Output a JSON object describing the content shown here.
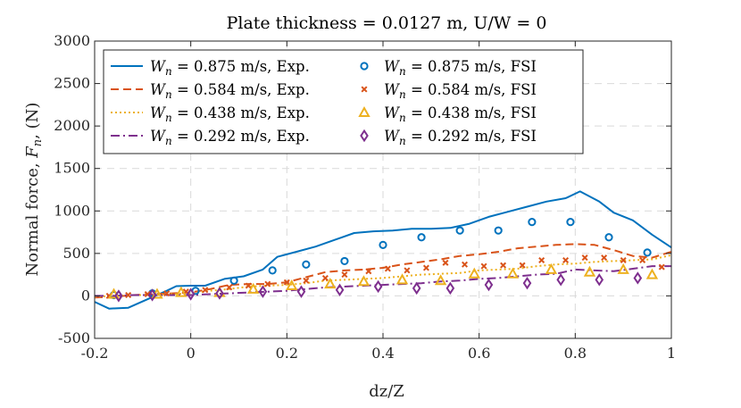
{
  "chart_data": {
    "type": "line",
    "title": "Plate thickness = 0.0127 m, U/W = 0",
    "xlabel": "dz/Z",
    "ylabel_text": "Normal force, ",
    "ylabel_symbol": "F",
    "ylabel_sub": "n",
    "ylabel_unit": ", (N)",
    "xlim": [
      -0.2,
      1
    ],
    "ylim": [
      -500,
      3000
    ],
    "xticks": [
      -0.2,
      0,
      0.2,
      0.4,
      0.6,
      0.8,
      1
    ],
    "xtick_labels": [
      "-0.2",
      "0",
      "0.2",
      "0.4",
      "0.6",
      "0.8",
      "1"
    ],
    "yticks": [
      -500,
      0,
      500,
      1000,
      1500,
      2000,
      2500,
      3000
    ],
    "ytick_labels": [
      "-500",
      "0",
      "500",
      "1000",
      "1500",
      "2000",
      "2500",
      "3000"
    ],
    "grid": true,
    "legend_position": "top-left",
    "colors": {
      "w875": "#0072BD",
      "w584": "#D95319",
      "w438": "#EDB120",
      "w292": "#7E2F8E"
    },
    "series": [
      {
        "id": "exp875",
        "kind": "line",
        "style": "solid",
        "color_key": "w875",
        "symbol": "W",
        "sub": "n",
        "label": " = 0.875 m/s, Exp.",
        "x": [
          -0.2,
          -0.17,
          -0.13,
          -0.09,
          -0.05,
          -0.03,
          0.0,
          0.03,
          0.07,
          0.11,
          0.15,
          0.18,
          0.22,
          0.26,
          0.3,
          0.34,
          0.38,
          0.42,
          0.46,
          0.5,
          0.54,
          0.58,
          0.62,
          0.66,
          0.7,
          0.74,
          0.78,
          0.81,
          0.85,
          0.88,
          0.92,
          0.96,
          1.0
        ],
        "y": [
          -70,
          -150,
          -140,
          -40,
          60,
          115,
          120,
          120,
          200,
          230,
          310,
          460,
          520,
          580,
          660,
          740,
          760,
          770,
          790,
          790,
          800,
          850,
          930,
          990,
          1050,
          1110,
          1150,
          1230,
          1110,
          980,
          890,
          720,
          570
        ]
      },
      {
        "id": "exp584",
        "kind": "line",
        "style": "dashed",
        "color_key": "w584",
        "symbol": "W",
        "sub": "n",
        "label": " = 0.584 m/s, Exp.",
        "x": [
          -0.2,
          -0.16,
          -0.12,
          -0.08,
          -0.04,
          0.0,
          0.04,
          0.08,
          0.12,
          0.16,
          0.2,
          0.24,
          0.28,
          0.32,
          0.36,
          0.4,
          0.44,
          0.48,
          0.52,
          0.56,
          0.6,
          0.64,
          0.68,
          0.72,
          0.76,
          0.8,
          0.84,
          0.88,
          0.92,
          0.96,
          1.0
        ],
        "y": [
          -20,
          -10,
          10,
          20,
          30,
          40,
          80,
          130,
          140,
          140,
          160,
          220,
          280,
          300,
          310,
          330,
          370,
          400,
          430,
          470,
          490,
          520,
          560,
          580,
          600,
          610,
          600,
          540,
          470,
          450,
          520
        ]
      },
      {
        "id": "exp438",
        "kind": "line",
        "style": "dotted",
        "color_key": "w438",
        "symbol": "W",
        "sub": "n",
        "label": " = 0.438 m/s, Exp.",
        "x": [
          -0.2,
          -0.16,
          -0.12,
          -0.08,
          -0.04,
          0.0,
          0.04,
          0.08,
          0.12,
          0.16,
          0.2,
          0.24,
          0.28,
          0.32,
          0.36,
          0.4,
          0.44,
          0.48,
          0.52,
          0.56,
          0.6,
          0.64,
          0.68,
          0.72,
          0.76,
          0.8,
          0.84,
          0.88,
          0.92,
          0.96,
          1.0
        ],
        "y": [
          -10,
          0,
          10,
          10,
          20,
          30,
          60,
          80,
          110,
          120,
          130,
          150,
          180,
          190,
          200,
          210,
          230,
          250,
          260,
          270,
          300,
          310,
          320,
          350,
          370,
          380,
          400,
          410,
          420,
          430,
          480
        ]
      },
      {
        "id": "exp292",
        "kind": "line",
        "style": "dashdot",
        "color_key": "w292",
        "symbol": "W",
        "sub": "n",
        "label": " = 0.292 m/s, Exp.",
        "x": [
          -0.2,
          -0.16,
          -0.12,
          -0.08,
          -0.04,
          0.0,
          0.04,
          0.08,
          0.12,
          0.16,
          0.2,
          0.24,
          0.28,
          0.32,
          0.36,
          0.4,
          0.44,
          0.48,
          0.52,
          0.56,
          0.6,
          0.64,
          0.68,
          0.72,
          0.76,
          0.8,
          0.84,
          0.88,
          0.92,
          0.96,
          1.0
        ],
        "y": [
          0,
          0,
          10,
          10,
          10,
          10,
          20,
          30,
          40,
          50,
          60,
          80,
          100,
          110,
          120,
          130,
          140,
          150,
          170,
          180,
          200,
          210,
          230,
          250,
          260,
          310,
          300,
          290,
          320,
          350,
          350
        ]
      },
      {
        "id": "fsi875",
        "kind": "scatter",
        "marker": "circle",
        "color_key": "w875",
        "symbol": "W",
        "sub": "n",
        "label": " = 0.875 m/s, FSI",
        "x": [
          -0.16,
          -0.08,
          0.01,
          0.09,
          0.17,
          0.24,
          0.32,
          0.4,
          0.48,
          0.56,
          0.64,
          0.71,
          0.79,
          0.87,
          0.95
        ],
        "y": [
          10,
          30,
          60,
          180,
          300,
          370,
          410,
          600,
          690,
          770,
          770,
          870,
          870,
          690,
          510
        ]
      },
      {
        "id": "fsi584",
        "kind": "scatter",
        "marker": "cross",
        "color_key": "w584",
        "symbol": "W",
        "sub": "n",
        "label": " = 0.584 m/s, FSI",
        "x": [
          -0.17,
          -0.13,
          -0.09,
          -0.05,
          -0.01,
          0.03,
          0.08,
          0.12,
          0.16,
          0.2,
          0.24,
          0.28,
          0.32,
          0.37,
          0.41,
          0.45,
          0.49,
          0.53,
          0.57,
          0.61,
          0.65,
          0.69,
          0.73,
          0.78,
          0.82,
          0.86,
          0.9,
          0.94,
          0.98
        ],
        "y": [
          0,
          10,
          20,
          30,
          50,
          70,
          100,
          120,
          140,
          160,
          180,
          210,
          250,
          290,
          320,
          300,
          330,
          390,
          370,
          350,
          360,
          360,
          420,
          420,
          450,
          450,
          420,
          420,
          340
        ]
      },
      {
        "id": "fsi438",
        "kind": "scatter",
        "marker": "triangle",
        "color_key": "w438",
        "symbol": "W",
        "sub": "n",
        "label": " = 0.438 m/s, FSI",
        "x": [
          -0.16,
          -0.07,
          -0.02,
          0.06,
          0.13,
          0.21,
          0.29,
          0.36,
          0.44,
          0.52,
          0.59,
          0.67,
          0.75,
          0.83,
          0.9,
          0.96
        ],
        "y": [
          20,
          20,
          40,
          40,
          80,
          120,
          140,
          170,
          190,
          180,
          260,
          260,
          310,
          280,
          310,
          250
        ]
      },
      {
        "id": "fsi292",
        "kind": "scatter",
        "marker": "diamond",
        "color_key": "w292",
        "symbol": "W",
        "sub": "n",
        "label": " = 0.292 m/s, FSI",
        "x": [
          -0.15,
          -0.08,
          0.0,
          0.06,
          0.15,
          0.23,
          0.31,
          0.39,
          0.47,
          0.54,
          0.62,
          0.7,
          0.77,
          0.85,
          0.93
        ],
        "y": [
          0,
          10,
          20,
          30,
          50,
          50,
          70,
          110,
          90,
          90,
          130,
          150,
          190,
          190,
          210
        ]
      }
    ]
  }
}
